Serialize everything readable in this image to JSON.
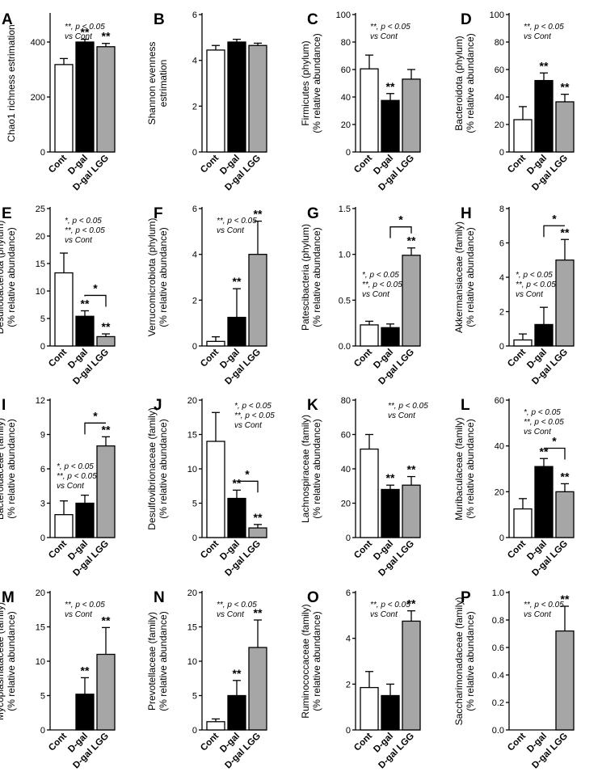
{
  "figure": {
    "background": "#ffffff"
  },
  "colors": {
    "Cont": "#ffffff",
    "D-gal": "#000000",
    "D-gal LGG": "#a6a6a6"
  },
  "chart_data": [
    {
      "id": "A",
      "type": "bar",
      "categories": [
        "Cont",
        "D-gal",
        "D-gal LGG"
      ],
      "ylabel": [
        "Chao1 richness estrimation"
      ],
      "ylim": [
        0,
        500
      ],
      "yticks": [
        0,
        200,
        400
      ],
      "tick_labels": [
        "0",
        "200",
        "400"
      ],
      "values": [
        318,
        400,
        383
      ],
      "errors": [
        22,
        10,
        12
      ],
      "sig": [
        "",
        "**",
        "**"
      ],
      "annotation": [
        "**, p < 0.05",
        "vs Cont"
      ],
      "annotation_pos": "top-left",
      "brackets": []
    },
    {
      "id": "B",
      "type": "bar",
      "categories": [
        "Cont",
        "D-gal",
        "D-gal LGG"
      ],
      "ylabel": [
        "Shannon evenness",
        "estrimation"
      ],
      "ylim": [
        0,
        6
      ],
      "yticks": [
        0,
        2,
        4,
        6
      ],
      "tick_labels": [
        "0",
        "2",
        "4",
        "6"
      ],
      "values": [
        4.45,
        4.8,
        4.65
      ],
      "errors": [
        0.2,
        0.12,
        0.1
      ],
      "sig": [
        "",
        "",
        ""
      ],
      "annotation": [],
      "annotation_pos": "top-left",
      "brackets": []
    },
    {
      "id": "C",
      "type": "bar",
      "categories": [
        "Cont",
        "D-gal",
        "D-gal LGG"
      ],
      "ylabel": [
        "Firmicutes (phylum)",
        "(% relative abundance)"
      ],
      "ylim": [
        0,
        100
      ],
      "yticks": [
        0,
        20,
        40,
        60,
        80,
        100
      ],
      "tick_labels": [
        "0",
        "20",
        "40",
        "60",
        "80",
        "100"
      ],
      "values": [
        60.5,
        37.5,
        53
      ],
      "errors": [
        10,
        5,
        7
      ],
      "sig": [
        "",
        "**",
        ""
      ],
      "annotation": [
        "**, p < 0.05",
        "vs Cont"
      ],
      "annotation_pos": "top-left",
      "brackets": []
    },
    {
      "id": "D",
      "type": "bar",
      "categories": [
        "Cont",
        "D-gal",
        "D-gal LGG"
      ],
      "ylabel": [
        "Bacteroidota (phylum)",
        "(% relative abundance)"
      ],
      "ylim": [
        0,
        100
      ],
      "yticks": [
        0,
        20,
        40,
        60,
        80,
        100
      ],
      "tick_labels": [
        "0",
        "20",
        "40",
        "60",
        "80",
        "100"
      ],
      "values": [
        23.5,
        52,
        36.5
      ],
      "errors": [
        9.5,
        5.5,
        5.5
      ],
      "sig": [
        "",
        "**",
        "**"
      ],
      "annotation": [
        "**, p < 0.05",
        "vs Cont"
      ],
      "annotation_pos": "top-left",
      "brackets": []
    },
    {
      "id": "E",
      "type": "bar",
      "categories": [
        "Cont",
        "D-gal",
        "D-gal LGG"
      ],
      "ylabel": [
        "Desulfobacterota (phylum)",
        "(% relative abundance)"
      ],
      "ylim": [
        0,
        25
      ],
      "yticks": [
        0,
        5,
        10,
        15,
        20,
        25
      ],
      "tick_labels": [
        "0",
        "5",
        "10",
        "15",
        "20",
        "25"
      ],
      "values": [
        13.3,
        5.4,
        1.7
      ],
      "errors": [
        3.6,
        1.0,
        0.5
      ],
      "sig": [
        "",
        "**",
        "**"
      ],
      "annotation": [
        "*, p < 0.05",
        "**, p < 0.05",
        "vs Cont"
      ],
      "annotation_pos": "top-left",
      "brackets": [
        {
          "from": 1,
          "to": 2,
          "y": 9.2,
          "label": "*"
        }
      ]
    },
    {
      "id": "F",
      "type": "bar",
      "categories": [
        "Cont",
        "D-gal",
        "D-gal LGG"
      ],
      "ylabel": [
        "Verrucomicrobiota (phylum)",
        "(% relative abundance)"
      ],
      "ylim": [
        0,
        6
      ],
      "yticks": [
        0,
        2,
        4,
        6
      ],
      "tick_labels": [
        "0",
        "2",
        "4",
        "6"
      ],
      "values": [
        0.2,
        1.25,
        4.0
      ],
      "errors": [
        0.2,
        1.25,
        1.45
      ],
      "sig": [
        "",
        "**",
        "**"
      ],
      "annotation": [
        "**, p < 0.05",
        "vs Cont"
      ],
      "annotation_pos": "top-left",
      "brackets": []
    },
    {
      "id": "G",
      "type": "bar",
      "categories": [
        "Cont",
        "D-gal",
        "D-gal LGG"
      ],
      "ylabel": [
        "Patescibacteria (phylum)",
        "(% relative abundance)"
      ],
      "ylim": [
        0,
        1.5
      ],
      "yticks": [
        0,
        0.5,
        1.0,
        1.5
      ],
      "tick_labels": [
        "0.0",
        "0.5",
        "1.0",
        "1.5"
      ],
      "values": [
        0.23,
        0.2,
        0.99
      ],
      "errors": [
        0.04,
        0.04,
        0.08
      ],
      "sig": [
        "",
        "",
        "**"
      ],
      "annotation": [
        "*, p < 0.05",
        "**, p < 0.05",
        "vs Cont"
      ],
      "annotation_pos": "mid-left",
      "brackets": [
        {
          "from": 1,
          "to": 2,
          "y": 1.3,
          "label": "*"
        }
      ]
    },
    {
      "id": "H",
      "type": "bar",
      "categories": [
        "Cont",
        "D-gal",
        "D-gal LGG"
      ],
      "ylabel": [
        "Akkermansiaceae (family)",
        "(% relative abundance)"
      ],
      "ylim": [
        0,
        8
      ],
      "yticks": [
        0,
        2,
        4,
        6,
        8
      ],
      "tick_labels": [
        "0",
        "2",
        "4",
        "6",
        "8"
      ],
      "values": [
        0.35,
        1.25,
        5.0
      ],
      "errors": [
        0.35,
        1.0,
        1.2
      ],
      "sig": [
        "",
        "",
        "**"
      ],
      "annotation": [
        "*, p < 0.05",
        "**, p < 0.05",
        "vs Cont"
      ],
      "annotation_pos": "mid-left",
      "brackets": [
        {
          "from": 1,
          "to": 2,
          "y": 7.0,
          "label": "*"
        }
      ]
    },
    {
      "id": "I",
      "type": "bar",
      "categories": [
        "Cont",
        "D-gal",
        "D-gal LGG"
      ],
      "ylabel": [
        "Bacteroidaceae (family)",
        "(% relative abundance)"
      ],
      "ylim": [
        0,
        12
      ],
      "yticks": [
        0,
        3,
        6,
        9,
        12
      ],
      "tick_labels": [
        "0",
        "3",
        "6",
        "9",
        "12"
      ],
      "values": [
        2.0,
        3.0,
        8.0
      ],
      "errors": [
        1.2,
        0.7,
        0.8
      ],
      "sig": [
        "",
        "",
        "**"
      ],
      "annotation": [
        "*, p < 0.05",
        "**, p < 0.05",
        "vs Cont"
      ],
      "annotation_pos": "mid-left",
      "brackets": [
        {
          "from": 1,
          "to": 2,
          "y": 10.0,
          "label": "*"
        }
      ]
    },
    {
      "id": "J",
      "type": "bar",
      "categories": [
        "Cont",
        "D-gal",
        "D-gal LGG"
      ],
      "ylabel": [
        "Desulfovibrionaceae (family)",
        "(% relative abundance)"
      ],
      "ylim": [
        0,
        20
      ],
      "yticks": [
        0,
        5,
        10,
        15,
        20
      ],
      "tick_labels": [
        "0",
        "5",
        "10",
        "15",
        "20"
      ],
      "values": [
        14.0,
        5.7,
        1.4
      ],
      "errors": [
        4.2,
        1.2,
        0.5
      ],
      "sig": [
        "",
        "**",
        "**"
      ],
      "annotation": [
        "*, p < 0.05",
        "**, p < 0.05",
        "vs Cont"
      ],
      "annotation_pos": "top-right",
      "brackets": [
        {
          "from": 1,
          "to": 2,
          "y": 8.2,
          "label": "*"
        }
      ]
    },
    {
      "id": "K",
      "type": "bar",
      "categories": [
        "Cont",
        "D-gal",
        "D-gal LGG"
      ],
      "ylabel": [
        "Lachnospiraceae (family)",
        "(% relative abundance)"
      ],
      "ylim": [
        0,
        80
      ],
      "yticks": [
        0,
        20,
        40,
        60,
        80
      ],
      "tick_labels": [
        "0",
        "20",
        "40",
        "60",
        "80"
      ],
      "values": [
        51.5,
        28.0,
        30.5
      ],
      "errors": [
        8.5,
        2.5,
        5.0
      ],
      "sig": [
        "",
        "**",
        "**"
      ],
      "annotation": [
        "**, p < 0.05",
        "vs Cont"
      ],
      "annotation_pos": "top-right",
      "brackets": []
    },
    {
      "id": "L",
      "type": "bar",
      "categories": [
        "Cont",
        "D-gal",
        "D-gal LGG"
      ],
      "ylabel": [
        "Muribaculaceae (family)",
        "(% relative abundance)"
      ],
      "ylim": [
        0,
        60
      ],
      "yticks": [
        0,
        20,
        40,
        60
      ],
      "tick_labels": [
        "0",
        "20",
        "40",
        "60"
      ],
      "values": [
        12.5,
        31.0,
        20.0
      ],
      "errors": [
        4.5,
        3.5,
        3.5
      ],
      "sig": [
        "",
        "**",
        "**"
      ],
      "annotation": [
        "*, p < 0.05",
        "**, p < 0.05",
        "vs Cont"
      ],
      "annotation_pos": "top-left",
      "brackets": [
        {
          "from": 1,
          "to": 2,
          "y": 39.0,
          "label": "*"
        }
      ]
    },
    {
      "id": "M",
      "type": "bar",
      "categories": [
        "Cont",
        "D-gal",
        "D-gal LGG"
      ],
      "ylabel": [
        "Mycoplasmataceae (family)",
        "(% relative abundance)"
      ],
      "ylim": [
        0,
        20
      ],
      "yticks": [
        0,
        5,
        10,
        15,
        20
      ],
      "tick_labels": [
        "0",
        "5",
        "10",
        "15",
        "20"
      ],
      "values": [
        0,
        5.2,
        11.0
      ],
      "errors": [
        0,
        2.4,
        3.9
      ],
      "sig": [
        "",
        "**",
        "**"
      ],
      "annotation": [
        "**, p < 0.05",
        "vs Cont"
      ],
      "annotation_pos": "top-left",
      "brackets": []
    },
    {
      "id": "N",
      "type": "bar",
      "categories": [
        "Cont",
        "D-gal",
        "D-gal LGG"
      ],
      "ylabel": [
        "Prevotellaceae (family)",
        "(% relative abundance)"
      ],
      "ylim": [
        0,
        20
      ],
      "yticks": [
        0,
        5,
        10,
        15,
        20
      ],
      "tick_labels": [
        "0",
        "5",
        "10",
        "15",
        "20"
      ],
      "values": [
        1.2,
        5.0,
        12.0
      ],
      "errors": [
        0.4,
        2.2,
        4.0
      ],
      "sig": [
        "",
        "**",
        "**"
      ],
      "annotation": [
        "**, p < 0.05",
        "vs Cont"
      ],
      "annotation_pos": "top-left",
      "brackets": []
    },
    {
      "id": "O",
      "type": "bar",
      "categories": [
        "Cont",
        "D-gal",
        "D-gal LGG"
      ],
      "ylabel": [
        "Ruminococcaceae (family)",
        "(% relative abundance)"
      ],
      "ylim": [
        0,
        6
      ],
      "yticks": [
        0,
        2,
        4,
        6
      ],
      "tick_labels": [
        "0",
        "2",
        "4",
        "6"
      ],
      "values": [
        1.85,
        1.5,
        4.75
      ],
      "errors": [
        0.7,
        0.5,
        0.45
      ],
      "sig": [
        "",
        "",
        "**"
      ],
      "annotation": [
        "**, p < 0.05",
        "vs Cont"
      ],
      "annotation_pos": "top-left",
      "brackets": []
    },
    {
      "id": "P",
      "type": "bar",
      "categories": [
        "Cont",
        "D-gal",
        "D-gal LGG"
      ],
      "ylabel": [
        "Saccharimonadaceae (family)",
        "(% relative abundance)"
      ],
      "ylim": [
        0,
        1.0
      ],
      "yticks": [
        0,
        0.2,
        0.4,
        0.6,
        0.8,
        1.0
      ],
      "tick_labels": [
        "0.0",
        "0.2",
        "0.4",
        "0.6",
        "0.8",
        "1.0"
      ],
      "values": [
        0,
        0,
        0.72
      ],
      "errors": [
        0,
        0,
        0.18
      ],
      "sig": [
        "",
        "",
        "**"
      ],
      "annotation": [
        "**, p < 0.05",
        "vs Cont"
      ],
      "annotation_pos": "top-left",
      "brackets": []
    }
  ]
}
